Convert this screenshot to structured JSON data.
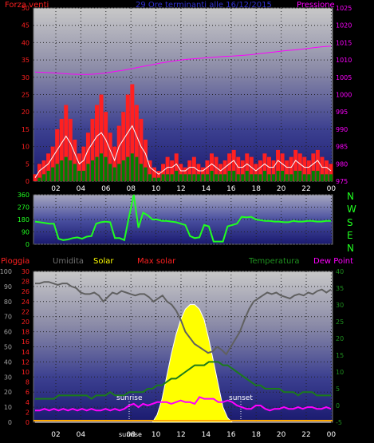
{
  "header": {
    "wind_title": "Forza venti",
    "date_title": "29 Ore terminanti alle 16/12/2015",
    "pressure_title": "Pressione"
  },
  "legend": {
    "rain": "Pioggia",
    "humidity": "Umidita",
    "solar": "Solar",
    "max_solar": "Max solar",
    "temperature": "Temperatura",
    "dew_point": "Dew Point"
  },
  "annotations": {
    "sunrise": "sunrise",
    "sunset": "sunset"
  },
  "compass": [
    "N",
    "W",
    "S",
    "E",
    "N"
  ],
  "colors": {
    "wind": "#ff2020",
    "gust_line": "#ffffff",
    "wind_avg": "#008000",
    "pressure": "#ff00ff",
    "direction": "#20ff20",
    "humidity": "#606060",
    "solar": "#ffff00",
    "max_solar": "#ffffff",
    "temperature": "#1b7a1b",
    "dew_point": "#ff00ff",
    "rain": "#ff2020",
    "panel_top": "#c8c8c8",
    "panel_bottom": "#1a2080"
  },
  "chart_data": [
    {
      "type": "line",
      "name": "wind",
      "x_ticks": [
        "02",
        "04",
        "06",
        "08",
        "10",
        "12",
        "14",
        "16",
        "18",
        "20",
        "22",
        "00"
      ],
      "y_left_ticks": [
        0,
        5,
        10,
        15,
        20,
        25,
        30,
        35,
        40,
        45,
        50
      ],
      "y_right_ticks": [
        975,
        980,
        985,
        990,
        995,
        1000,
        1005,
        1010,
        1015,
        1020,
        1025
      ],
      "ylim_left": [
        0,
        50
      ],
      "ylim_right": [
        975,
        1025
      ],
      "wind_gust": [
        2,
        5,
        6,
        8,
        10,
        15,
        18,
        22,
        18,
        12,
        8,
        10,
        14,
        18,
        22,
        25,
        20,
        14,
        10,
        16,
        20,
        25,
        28,
        22,
        18,
        12,
        6,
        4,
        3,
        5,
        7,
        6,
        8,
        5,
        4,
        6,
        7,
        5,
        4,
        6,
        8,
        7,
        5,
        6,
        8,
        9,
        7,
        6,
        8,
        7,
        5,
        6,
        8,
        7,
        6,
        9,
        8,
        6,
        7,
        9,
        8,
        7,
        6,
        8,
        9,
        7,
        6,
        5
      ],
      "wind_speed": [
        1,
        3,
        4,
        5,
        7,
        9,
        11,
        13,
        11,
        8,
        5,
        6,
        9,
        11,
        13,
        14,
        12,
        9,
        6,
        10,
        12,
        14,
        16,
        13,
        10,
        8,
        4,
        3,
        2,
        3,
        4,
        4,
        5,
        3,
        3,
        4,
        4,
        3,
        3,
        4,
        5,
        4,
        3,
        4,
        5,
        6,
        4,
        4,
        5,
        4,
        3,
        4,
        5,
        4,
        4,
        6,
        5,
        4,
        4,
        6,
        5,
        4,
        4,
        5,
        6,
        4,
        4,
        3
      ],
      "wind_avg": [
        0,
        1,
        2,
        3,
        4,
        5,
        6,
        7,
        6,
        5,
        3,
        3,
        5,
        6,
        7,
        8,
        7,
        5,
        4,
        5,
        6,
        7,
        8,
        7,
        5,
        4,
        2,
        1,
        1,
        2,
        2,
        2,
        3,
        2,
        2,
        2,
        2,
        2,
        2,
        2,
        3,
        2,
        2,
        2,
        3,
        3,
        2,
        2,
        3,
        2,
        2,
        2,
        3,
        2,
        2,
        3,
        3,
        2,
        2,
        3,
        3,
        2,
        2,
        3,
        3,
        2,
        2,
        2
      ],
      "pressure": [
        1006.5,
        1006.4,
        1006.3,
        1006.1,
        1005.9,
        1005.8,
        1005.8,
        1006,
        1006.3,
        1006.7,
        1007.1,
        1007.6,
        1008.1,
        1008.6,
        1009.1,
        1009.5,
        1009.9,
        1010.2,
        1010.4,
        1010.6,
        1010.8,
        1011,
        1011.1,
        1011.3,
        1011.5,
        1011.8,
        1012.1,
        1012.4,
        1012.7,
        1012.9,
        1013.2,
        1013.5,
        1013.8,
        1014
      ],
      "pressure_unit_note": ""
    },
    {
      "type": "line",
      "name": "wind_direction",
      "y_ticks": [
        0,
        90,
        180,
        270,
        360
      ],
      "ylim": [
        0,
        360
      ],
      "values": [
        165,
        160,
        155,
        150,
        150,
        40,
        30,
        35,
        45,
        50,
        40,
        55,
        60,
        150,
        160,
        165,
        160,
        45,
        45,
        30,
        200,
        360,
        120,
        230,
        210,
        180,
        180,
        170,
        170,
        165,
        160,
        150,
        140,
        60,
        45,
        50,
        140,
        130,
        20,
        20,
        20,
        130,
        140,
        150,
        200,
        195,
        200,
        180,
        175,
        170,
        170,
        165,
        165,
        160,
        160,
        170,
        165,
        165,
        170,
        170,
        165,
        165,
        170,
        170
      ]
    },
    {
      "type": "line",
      "name": "weather",
      "y_left_ticks": [
        0,
        10,
        20,
        30,
        40,
        50,
        60,
        70,
        80,
        90,
        100
      ],
      "y_left2_ticks": [
        0,
        2,
        4,
        6,
        8,
        10,
        12,
        14,
        16,
        18,
        20,
        22,
        24,
        26,
        28,
        30
      ],
      "y_right_ticks": [
        -5,
        0,
        5,
        10,
        15,
        20,
        25,
        30,
        35,
        40
      ],
      "ylim_humidity": [
        0,
        100
      ],
      "ylim_temperature": [
        -5,
        40
      ],
      "humidity": [
        92,
        92,
        93,
        93,
        92,
        91,
        92,
        92,
        90,
        89,
        86,
        85,
        85,
        86,
        84,
        80,
        83,
        86,
        85,
        87,
        86,
        85,
        84,
        85,
        85,
        83,
        80,
        82,
        84,
        80,
        78,
        74,
        68,
        60,
        56,
        52,
        50,
        48,
        46,
        47,
        50,
        48,
        45,
        50,
        55,
        60,
        68,
        75,
        80,
        82,
        84,
        86,
        85,
        86,
        84,
        83,
        82,
        84,
        85,
        84,
        86,
        85,
        87,
        88,
        86,
        88
      ],
      "temperature": [
        2,
        2,
        2,
        2,
        2,
        3,
        3,
        3,
        3,
        3,
        3,
        3,
        2,
        3,
        3,
        3,
        4,
        3,
        3,
        3,
        4,
        4,
        4,
        4,
        5,
        5,
        6,
        6,
        7,
        8,
        8,
        9,
        10,
        11,
        12,
        12,
        12,
        13,
        13,
        13,
        12,
        12,
        11,
        10,
        9,
        8,
        7,
        6,
        6,
        5,
        5,
        5,
        5,
        4,
        4,
        4,
        3,
        4,
        4,
        4,
        3,
        3,
        3,
        3
      ],
      "dew_point": [
        -1.5,
        -1.5,
        -1,
        -1.5,
        -1,
        -1.5,
        -1,
        -1.5,
        -1,
        -1.5,
        -1,
        -1.5,
        -1,
        -1.5,
        -1.5,
        -1,
        -1.5,
        -1,
        -1.5,
        -1,
        0,
        0.5,
        -0.5,
        0.5,
        0,
        0.5,
        1,
        1,
        1,
        0.5,
        1,
        1.5,
        1,
        1,
        0.5,
        2.5,
        2,
        2,
        2,
        1,
        1,
        1.5,
        1,
        0,
        -0.5,
        -1,
        -1,
        0,
        0,
        -1,
        -1.5,
        -1,
        -1,
        -0.5,
        -1,
        -1,
        -0.5,
        -1,
        -0.5,
        -0.5,
        -1,
        -1,
        -0.5,
        -1
      ],
      "solar": [
        0,
        0,
        0,
        0,
        0,
        0,
        0,
        0,
        0,
        0,
        0,
        0,
        0,
        0,
        0,
        0,
        0,
        0,
        0,
        0,
        0,
        0,
        0,
        0,
        0,
        0,
        5,
        15,
        30,
        45,
        58,
        68,
        75,
        78,
        78,
        75,
        68,
        55,
        40,
        25,
        10,
        3,
        0,
        0,
        0,
        0,
        0,
        0,
        0,
        0,
        0,
        0,
        0,
        0,
        0,
        0,
        0,
        0,
        0,
        0,
        0,
        0,
        0,
        0
      ],
      "rain": [
        0,
        0,
        0,
        0,
        0,
        0,
        0,
        0,
        0,
        0,
        0,
        0,
        0,
        0,
        0,
        0,
        0,
        0,
        0,
        0,
        0,
        0,
        0,
        0,
        0,
        0,
        0,
        0,
        0,
        0,
        0,
        0,
        0,
        0,
        0,
        0,
        0,
        0,
        0,
        0,
        0,
        0,
        0,
        0,
        0,
        0,
        0,
        0,
        0,
        0,
        0,
        0,
        0,
        0,
        0,
        0,
        0,
        0,
        0,
        0,
        0,
        0,
        0,
        0
      ]
    }
  ]
}
